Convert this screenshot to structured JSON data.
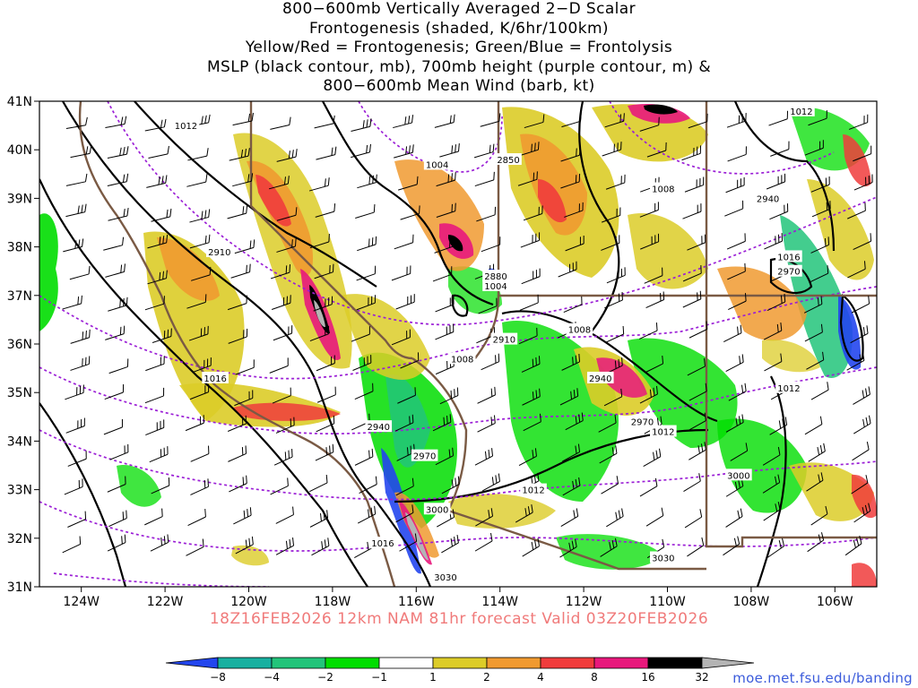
{
  "title": {
    "lines": [
      "800−600mb Vertically Averaged 2−D Scalar",
      "Frontogenesis (shaded, K/6hr/100km)",
      "Yellow/Red = Frontogenesis;  Green/Blue = Frontolysis",
      "MSLP (black contour, mb), 700mb height (purple contour, m) &",
      "800−600mb Mean Wind (barb, kt)"
    ]
  },
  "footer": {
    "run_info": "18Z16FEB2026 12km NAM 81hr forecast Valid 03Z20FEB2026",
    "site": "moe.met.fsu.edu/banding"
  },
  "map": {
    "lon_range": [
      -125,
      -105
    ],
    "lat_range": [
      31,
      41
    ],
    "lat_labels": [
      "41N",
      "40N",
      "39N",
      "38N",
      "37N",
      "36N",
      "35N",
      "34N",
      "33N",
      "32N",
      "31N"
    ],
    "lon_labels": [
      "124W",
      "122W",
      "120W",
      "118W",
      "116W",
      "114W",
      "112W",
      "110W",
      "108W",
      "106W"
    ],
    "colors": {
      "mslp_contour": "#000000",
      "height_contour": "#9b1fd6",
      "boundary": "#7a5a44",
      "wind_barb": "#000000"
    },
    "mslp_labels": [
      {
        "text": "1012",
        "lon": -121.5,
        "lat": 40.5
      },
      {
        "text": "1004",
        "lon": -115.5,
        "lat": 39.7
      },
      {
        "text": "1008",
        "lon": -110.1,
        "lat": 39.2
      },
      {
        "text": "1012",
        "lon": -106.8,
        "lat": 40.8
      },
      {
        "text": "1016",
        "lon": -107.1,
        "lat": 37.8
      },
      {
        "text": "1004",
        "lon": -114.1,
        "lat": 37.2
      },
      {
        "text": "1008",
        "lon": -112.1,
        "lat": 36.3
      },
      {
        "text": "1008",
        "lon": -114.9,
        "lat": 35.7
      },
      {
        "text": "1016",
        "lon": -120.8,
        "lat": 35.3
      },
      {
        "text": "1012",
        "lon": -107.1,
        "lat": 35.1
      },
      {
        "text": "1012",
        "lon": -110.1,
        "lat": 34.2
      },
      {
        "text": "1012",
        "lon": -113.2,
        "lat": 33.0
      },
      {
        "text": "1016",
        "lon": -116.8,
        "lat": 31.9
      }
    ],
    "height_labels": [
      {
        "text": "2850",
        "lon": -113.8,
        "lat": 39.8
      },
      {
        "text": "2940",
        "lon": -107.6,
        "lat": 39.0
      },
      {
        "text": "2910",
        "lon": -120.7,
        "lat": 37.9
      },
      {
        "text": "2880",
        "lon": -114.1,
        "lat": 37.4
      },
      {
        "text": "2970",
        "lon": -107.1,
        "lat": 37.5
      },
      {
        "text": "2910",
        "lon": -113.9,
        "lat": 36.1
      },
      {
        "text": "2940",
        "lon": -111.6,
        "lat": 35.3
      },
      {
        "text": "2940",
        "lon": -116.9,
        "lat": 34.3
      },
      {
        "text": "2970",
        "lon": -115.8,
        "lat": 33.7
      },
      {
        "text": "2970",
        "lon": -110.6,
        "lat": 34.4
      },
      {
        "text": "3000",
        "lon": -108.3,
        "lat": 33.3
      },
      {
        "text": "3000",
        "lon": -115.5,
        "lat": 32.6
      },
      {
        "text": "3030",
        "lon": -110.1,
        "lat": 31.6
      },
      {
        "text": "3030",
        "lon": -115.3,
        "lat": 31.2
      }
    ]
  },
  "colorbar": {
    "labels": [
      "−8",
      "−4",
      "−2",
      "−1",
      "1",
      "2",
      "4",
      "8",
      "16",
      "32"
    ],
    "colors": [
      "#2346ee",
      "#18b0a0",
      "#22c47a",
      "#00dd00",
      "#ffffff",
      "#dccc28",
      "#f09a30",
      "#f03c3c",
      "#e8187c",
      "#000000",
      "#b4b4b4"
    ]
  }
}
